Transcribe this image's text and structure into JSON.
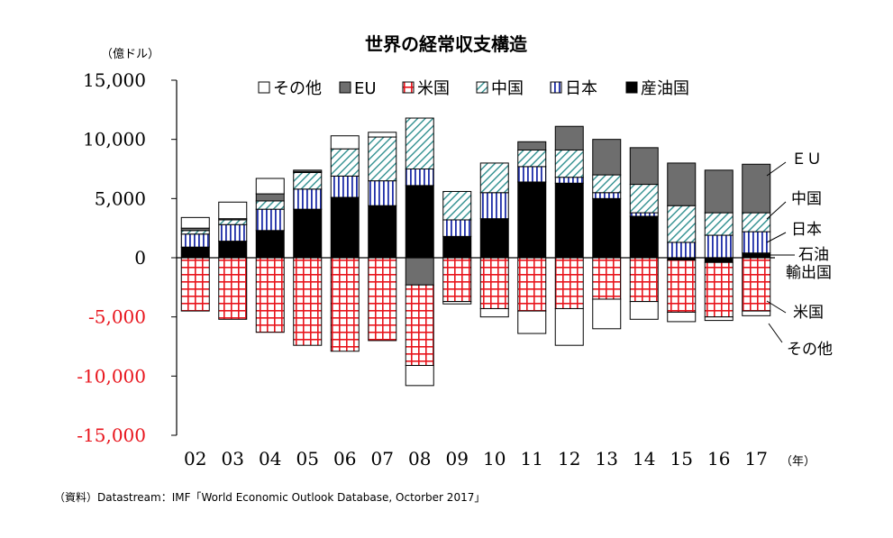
{
  "chart_data": {
    "type": "bar",
    "stacked": true,
    "title": "世界の経常収支構造",
    "ylabel": "（億ドル）",
    "xlabel": "（年）",
    "ylim": [
      -15000,
      15000
    ],
    "yticks": [
      15000,
      10000,
      5000,
      0,
      -5000,
      -10000,
      -15000
    ],
    "ytick_labels": [
      "15,000",
      "10,000",
      "5,000",
      "0",
      "-5,000",
      "-10,000",
      "-15,000"
    ],
    "categories": [
      "02",
      "03",
      "04",
      "05",
      "06",
      "07",
      "08",
      "09",
      "10",
      "11",
      "12",
      "13",
      "14",
      "15",
      "16",
      "17"
    ],
    "series": [
      {
        "name": "産油国",
        "key": "oil",
        "fill": "solid-black",
        "values": [
          900,
          1400,
          2300,
          4100,
          5100,
          4400,
          6100,
          1800,
          3300,
          6400,
          6300,
          5000,
          3500,
          -200,
          -400,
          400
        ]
      },
      {
        "name": "日本",
        "key": "japan",
        "fill": "v-stripe-blue",
        "values": [
          1100,
          1400,
          1800,
          1700,
          1800,
          2100,
          1400,
          1400,
          2200,
          1300,
          500,
          500,
          300,
          1300,
          1900,
          1800
        ]
      },
      {
        "name": "中国",
        "key": "china",
        "fill": "diag-hatch-teal",
        "values": [
          300,
          400,
          700,
          1400,
          2300,
          3700,
          4300,
          2400,
          2500,
          1400,
          2300,
          1500,
          2400,
          3100,
          1900,
          1600
        ]
      },
      {
        "name": "EU",
        "key": "eu",
        "fill": "solid-gray",
        "values": [
          200,
          100,
          600,
          100,
          0,
          0,
          -2300,
          0,
          0,
          700,
          2000,
          3000,
          3100,
          3600,
          3600,
          4100
        ]
      },
      {
        "name": "米国",
        "key": "us",
        "fill": "red-grid",
        "values": [
          -4500,
          -5200,
          -6300,
          -7400,
          -7900,
          -7000,
          -6800,
          -3700,
          -4300,
          -4500,
          -4300,
          -3500,
          -3700,
          -4400,
          -4600,
          -4500
        ]
      },
      {
        "name": "その他",
        "key": "other",
        "fill": "white",
        "values": [
          900,
          1400,
          1300,
          100,
          1100,
          400,
          -1700,
          -200,
          -700,
          -1900,
          -3100,
          -2500,
          -1500,
          -800,
          -300,
          -400
        ]
      }
    ],
    "legend_order": [
      "その他",
      "EU",
      "米国",
      "中国",
      "日本",
      "産油国"
    ],
    "legend_placement": "top",
    "negative_tick_color": "#e8141c",
    "right_annotations": [
      "ＥＵ",
      "中国",
      "日本",
      "石油",
      "輸出国",
      "米国",
      "その他"
    ],
    "source": "（資料）Datastream：IMF「World Economic Outlook Database, Octorber 2017」"
  },
  "colors": {
    "negative_tick": "#e8141c",
    "eu_gray": "#6e6e6e",
    "grid_red": "#e8141c",
    "japan_blue": "#1f2fa8",
    "china_teal": "#2f8f8f"
  }
}
